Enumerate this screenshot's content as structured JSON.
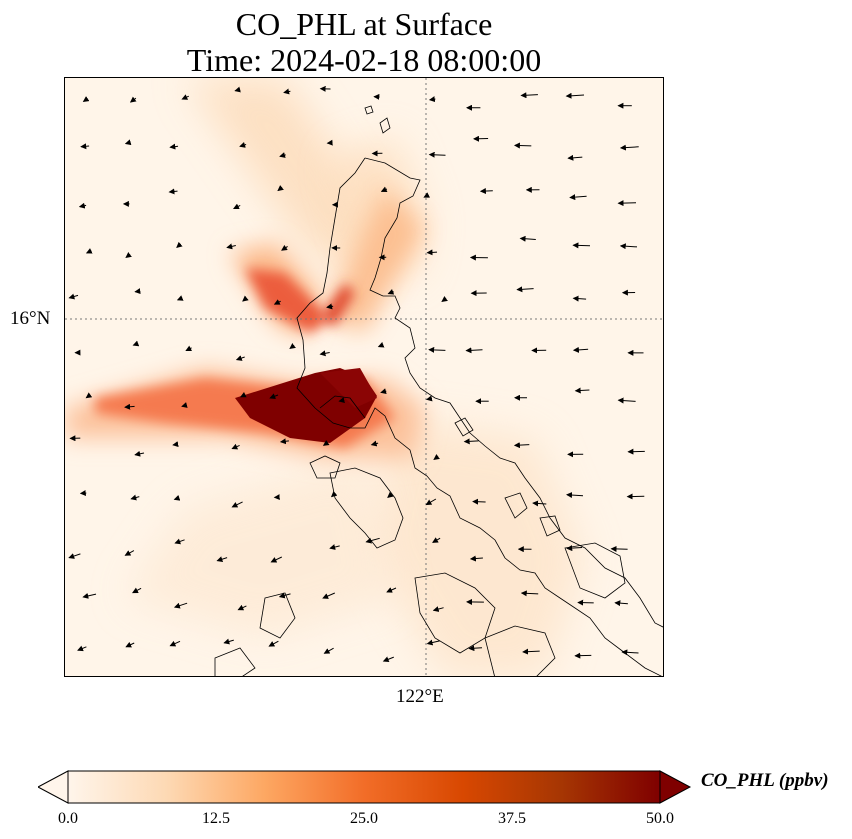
{
  "title": {
    "line1": "CO_PHL at Surface",
    "line2": "Time: 2024-02-18 08:00:00"
  },
  "map": {
    "lat_tick_label": "16°N",
    "lon_tick_label": "122°E",
    "gridlines": "dotted",
    "field_variable": "CO_PHL",
    "plumes": [
      {
        "name": "central-luzon-westward",
        "peak_ppbv": 50,
        "direction": "west-north-west"
      },
      {
        "name": "northern-luzon-v-shape",
        "peak_ppbv": 45,
        "direction": "north-west"
      },
      {
        "name": "southern-islands-diffuse",
        "peak_ppbv": 12,
        "direction": "south-west"
      }
    ],
    "wind_vectors": "shown"
  },
  "colorbar": {
    "label": "CO_PHL (ppbv)",
    "ticks": [
      "0.0",
      "12.5",
      "25.0",
      "37.5",
      "50.0"
    ],
    "min": 0,
    "max": 50,
    "extend": "both",
    "colormap": [
      "#fff5eb",
      "#fdd9b4",
      "#fda762",
      "#f26d28",
      "#d84801",
      "#a63603",
      "#7f0000"
    ]
  }
}
